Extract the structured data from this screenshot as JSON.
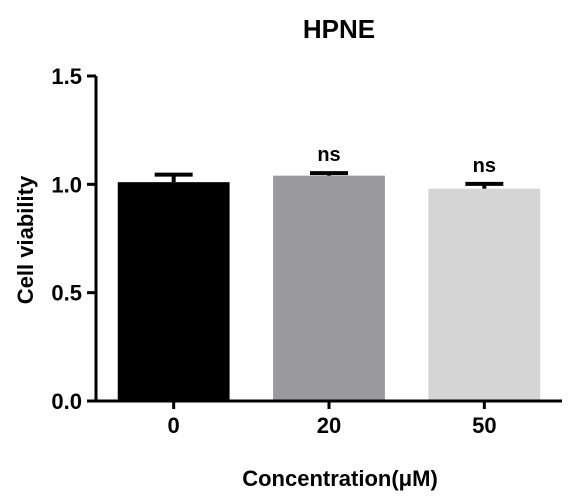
{
  "chart_data": {
    "type": "bar",
    "title": "HPNE",
    "xlabel": "Concentration(μM)",
    "ylabel": "Cell viability",
    "categories": [
      "0",
      "20",
      "50"
    ],
    "values": [
      1.01,
      1.04,
      0.98
    ],
    "errors": [
      0.035,
      0.012,
      0.022
    ],
    "annotations": [
      "",
      "ns",
      "ns"
    ],
    "bar_colors": [
      "#000000",
      "#9a9a9e",
      "#d5d5d5"
    ],
    "ylim": [
      0,
      1.5
    ],
    "yticks": [
      "0.0",
      "0.5",
      "1.0",
      "1.5"
    ],
    "grid": false
  }
}
